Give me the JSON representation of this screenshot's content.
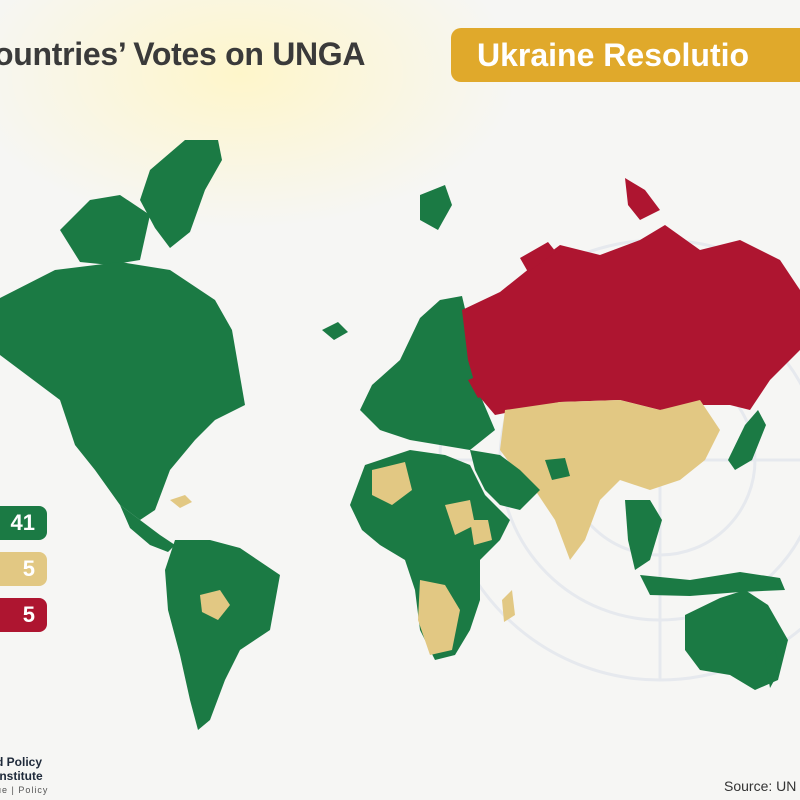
{
  "header": {
    "title": "ountries’ Votes on UNGA",
    "badge": "Ukraine Resolutio"
  },
  "legend": [
    {
      "label": "41",
      "color": "#1b7a44"
    },
    {
      "label": "5",
      "color": "#e2c883"
    },
    {
      "label": "5",
      "color": "#ae1530"
    }
  ],
  "colors": {
    "yes": "#1b7a44",
    "abstain": "#e2c883",
    "no": "#ae1530"
  },
  "footer": {
    "logo_line1": "d Policy",
    "logo_line2": "Institute",
    "logo_tagline": "ue | Policy",
    "source": "Source: UN"
  }
}
